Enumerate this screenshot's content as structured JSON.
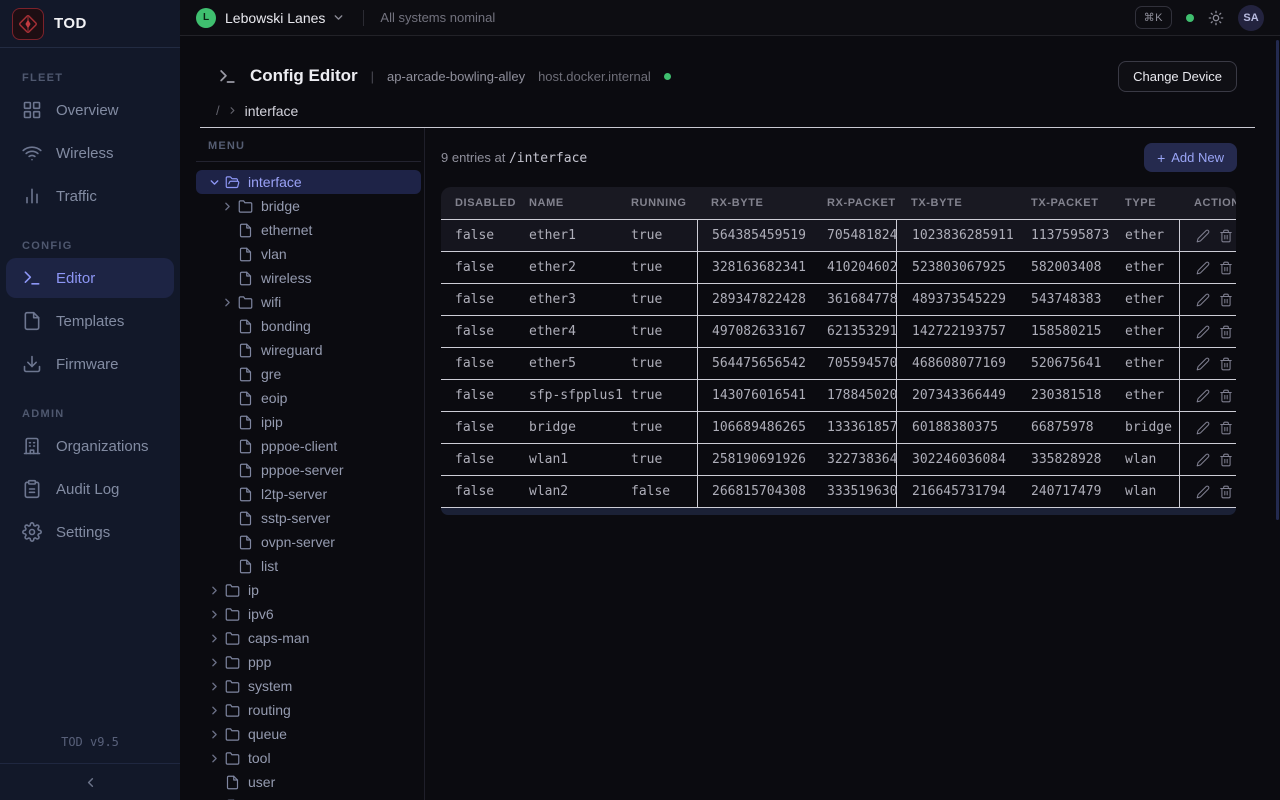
{
  "brand": {
    "name": "TOD",
    "version": "TOD v9.5"
  },
  "topbar": {
    "org_initial": "L",
    "org_name": "Lebowski Lanes",
    "status_text": "All systems nominal",
    "shortcut": "⌘K",
    "user_initials": "SA"
  },
  "sidebar": {
    "sections": [
      {
        "label": "FLEET",
        "items": [
          {
            "label": "Overview",
            "icon": "grid"
          },
          {
            "label": "Wireless",
            "icon": "wifi"
          },
          {
            "label": "Traffic",
            "icon": "bar-chart"
          }
        ]
      },
      {
        "label": "CONFIG",
        "items": [
          {
            "label": "Editor",
            "icon": "terminal",
            "active": true
          },
          {
            "label": "Templates",
            "icon": "file-text"
          },
          {
            "label": "Firmware",
            "icon": "download"
          }
        ]
      },
      {
        "label": "ADMIN",
        "items": [
          {
            "label": "Organizations",
            "icon": "building"
          },
          {
            "label": "Audit Log",
            "icon": "clipboard"
          },
          {
            "label": "Settings",
            "icon": "gear"
          }
        ]
      }
    ]
  },
  "page_header": {
    "title": "Config Editor",
    "device_name": "ap-arcade-bowling-alley",
    "device_host": "host.docker.internal",
    "change_device_label": "Change Device"
  },
  "breadcrumb": {
    "root": "/",
    "current": "interface"
  },
  "tree": {
    "panel_label": "MENU",
    "items": [
      {
        "label": "interface",
        "icon": "folder-open",
        "chevron": "down",
        "level": 0,
        "selected": true
      },
      {
        "label": "bridge",
        "icon": "folder",
        "chevron": "right",
        "level": 1
      },
      {
        "label": "ethernet",
        "icon": "file",
        "level": 1
      },
      {
        "label": "vlan",
        "icon": "file",
        "level": 1
      },
      {
        "label": "wireless",
        "icon": "file",
        "level": 1
      },
      {
        "label": "wifi",
        "icon": "folder",
        "chevron": "right",
        "level": 1
      },
      {
        "label": "bonding",
        "icon": "file",
        "level": 1
      },
      {
        "label": "wireguard",
        "icon": "file",
        "level": 1
      },
      {
        "label": "gre",
        "icon": "file",
        "level": 1
      },
      {
        "label": "eoip",
        "icon": "file",
        "level": 1
      },
      {
        "label": "ipip",
        "icon": "file",
        "level": 1
      },
      {
        "label": "pppoe-client",
        "icon": "file",
        "level": 1
      },
      {
        "label": "pppoe-server",
        "icon": "file",
        "level": 1
      },
      {
        "label": "l2tp-server",
        "icon": "file",
        "level": 1
      },
      {
        "label": "sstp-server",
        "icon": "file",
        "level": 1
      },
      {
        "label": "ovpn-server",
        "icon": "file",
        "level": 1
      },
      {
        "label": "list",
        "icon": "file",
        "level": 1
      },
      {
        "label": "ip",
        "icon": "folder",
        "chevron": "right",
        "level": 0
      },
      {
        "label": "ipv6",
        "icon": "folder",
        "chevron": "right",
        "level": 0
      },
      {
        "label": "caps-man",
        "icon": "folder",
        "chevron": "right",
        "level": 0
      },
      {
        "label": "ppp",
        "icon": "folder",
        "chevron": "right",
        "level": 0
      },
      {
        "label": "system",
        "icon": "folder",
        "chevron": "right",
        "level": 0
      },
      {
        "label": "routing",
        "icon": "folder",
        "chevron": "right",
        "level": 0
      },
      {
        "label": "queue",
        "icon": "folder",
        "chevron": "right",
        "level": 0
      },
      {
        "label": "tool",
        "icon": "folder",
        "chevron": "right",
        "level": 0
      },
      {
        "label": "user",
        "icon": "file",
        "level": 0
      },
      {
        "label": "",
        "icon": "file",
        "level": 0,
        "partial": true
      }
    ]
  },
  "table": {
    "summary_count_text": "9 entries at",
    "summary_path": "/interface",
    "add_new_label": "Add New",
    "columns": [
      "DISABLED",
      "NAME",
      "RUNNING",
      "RX-BYTE",
      "RX-PACKET",
      "TX-BYTE",
      "TX-PACKET",
      "TYPE",
      "ACTIONS"
    ],
    "rows": [
      {
        "disabled": "false",
        "name": "ether1",
        "running": "true",
        "rx_byte": "564385459519",
        "rx_packet": "705481824",
        "tx_byte": "1023836285911",
        "tx_packet": "1137595873",
        "type": "ether"
      },
      {
        "disabled": "false",
        "name": "ether2",
        "running": "true",
        "rx_byte": "328163682341",
        "rx_packet": "410204602",
        "tx_byte": "523803067925",
        "tx_packet": "582003408",
        "type": "ether"
      },
      {
        "disabled": "false",
        "name": "ether3",
        "running": "true",
        "rx_byte": "289347822428",
        "rx_packet": "361684778",
        "tx_byte": "489373545229",
        "tx_packet": "543748383",
        "type": "ether"
      },
      {
        "disabled": "false",
        "name": "ether4",
        "running": "true",
        "rx_byte": "497082633167",
        "rx_packet": "621353291",
        "tx_byte": "142722193757",
        "tx_packet": "158580215",
        "type": "ether"
      },
      {
        "disabled": "false",
        "name": "ether5",
        "running": "true",
        "rx_byte": "564475656542",
        "rx_packet": "705594570",
        "tx_byte": "468608077169",
        "tx_packet": "520675641",
        "type": "ether"
      },
      {
        "disabled": "false",
        "name": "sfp-sfpplus1",
        "running": "true",
        "rx_byte": "143076016541",
        "rx_packet": "178845020",
        "tx_byte": "207343366449",
        "tx_packet": "230381518",
        "type": "ether"
      },
      {
        "disabled": "false",
        "name": "bridge",
        "running": "true",
        "rx_byte": "106689486265",
        "rx_packet": "133361857",
        "tx_byte": "60188380375",
        "tx_packet": "66875978",
        "type": "bridge"
      },
      {
        "disabled": "false",
        "name": "wlan1",
        "running": "true",
        "rx_byte": "258190691926",
        "rx_packet": "322738364",
        "tx_byte": "302246036084",
        "tx_packet": "335828928",
        "type": "wlan"
      },
      {
        "disabled": "false",
        "name": "wlan2",
        "running": "false",
        "rx_byte": "266815704308",
        "rx_packet": "333519630",
        "tx_byte": "216645731794",
        "tx_packet": "240717479",
        "type": "wlan"
      }
    ]
  },
  "colors": {
    "accent_indigo": "#8d96f5",
    "status_green": "#3fbf6f",
    "selection_bg": "#1e2347",
    "logo_red": "#c23b41"
  }
}
